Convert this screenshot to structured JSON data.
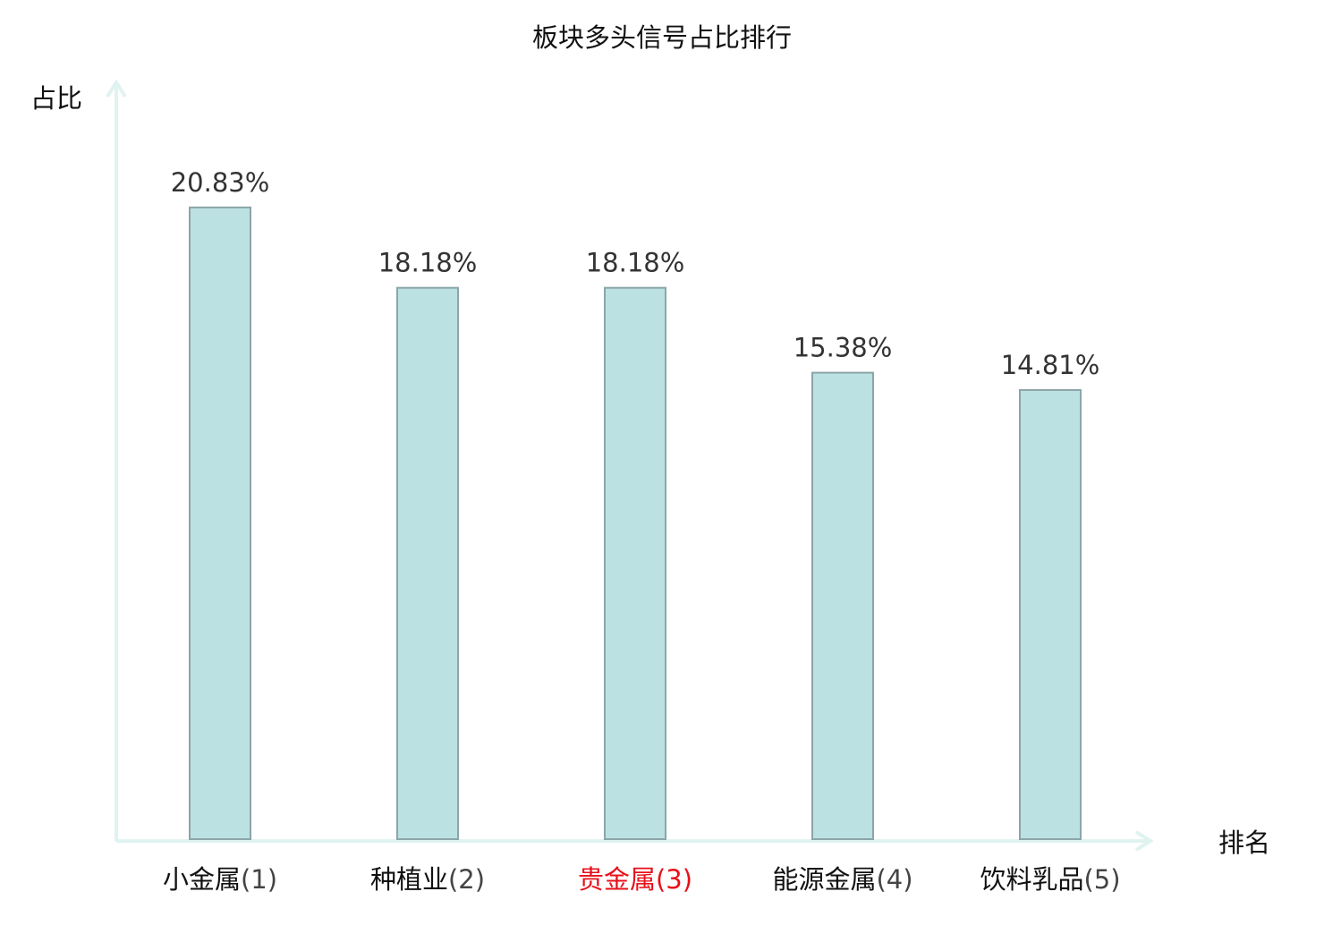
{
  "chart_data": {
    "type": "bar",
    "title": "板块多头信号占比排行",
    "xlabel": "排名",
    "ylabel": "占比",
    "categories": [
      {
        "name": "小金属",
        "rank": "(1)",
        "highlight": false
      },
      {
        "name": "种植业",
        "rank": "(2)",
        "highlight": false
      },
      {
        "name": "贵金属",
        "rank": "(3)",
        "highlight": true
      },
      {
        "name": "能源金属",
        "rank": "(4)",
        "highlight": false
      },
      {
        "name": "饮料乳品",
        "rank": "(5)",
        "highlight": false
      }
    ],
    "values": [
      20.83,
      18.18,
      18.18,
      15.38,
      14.81
    ],
    "value_labels": [
      "20.83%",
      "18.18%",
      "18.18%",
      "15.38%",
      "14.81%"
    ],
    "ylim": [
      0,
      25
    ],
    "grid": false,
    "legend": "none"
  },
  "colors": {
    "bar_fill": "#bce1e3",
    "bar_stroke": "#8ca5a7",
    "axis": "#e0f3f1",
    "text": "#111111",
    "value_label": "#333333",
    "rank_text": "#444444",
    "highlight": "#e8101a"
  }
}
